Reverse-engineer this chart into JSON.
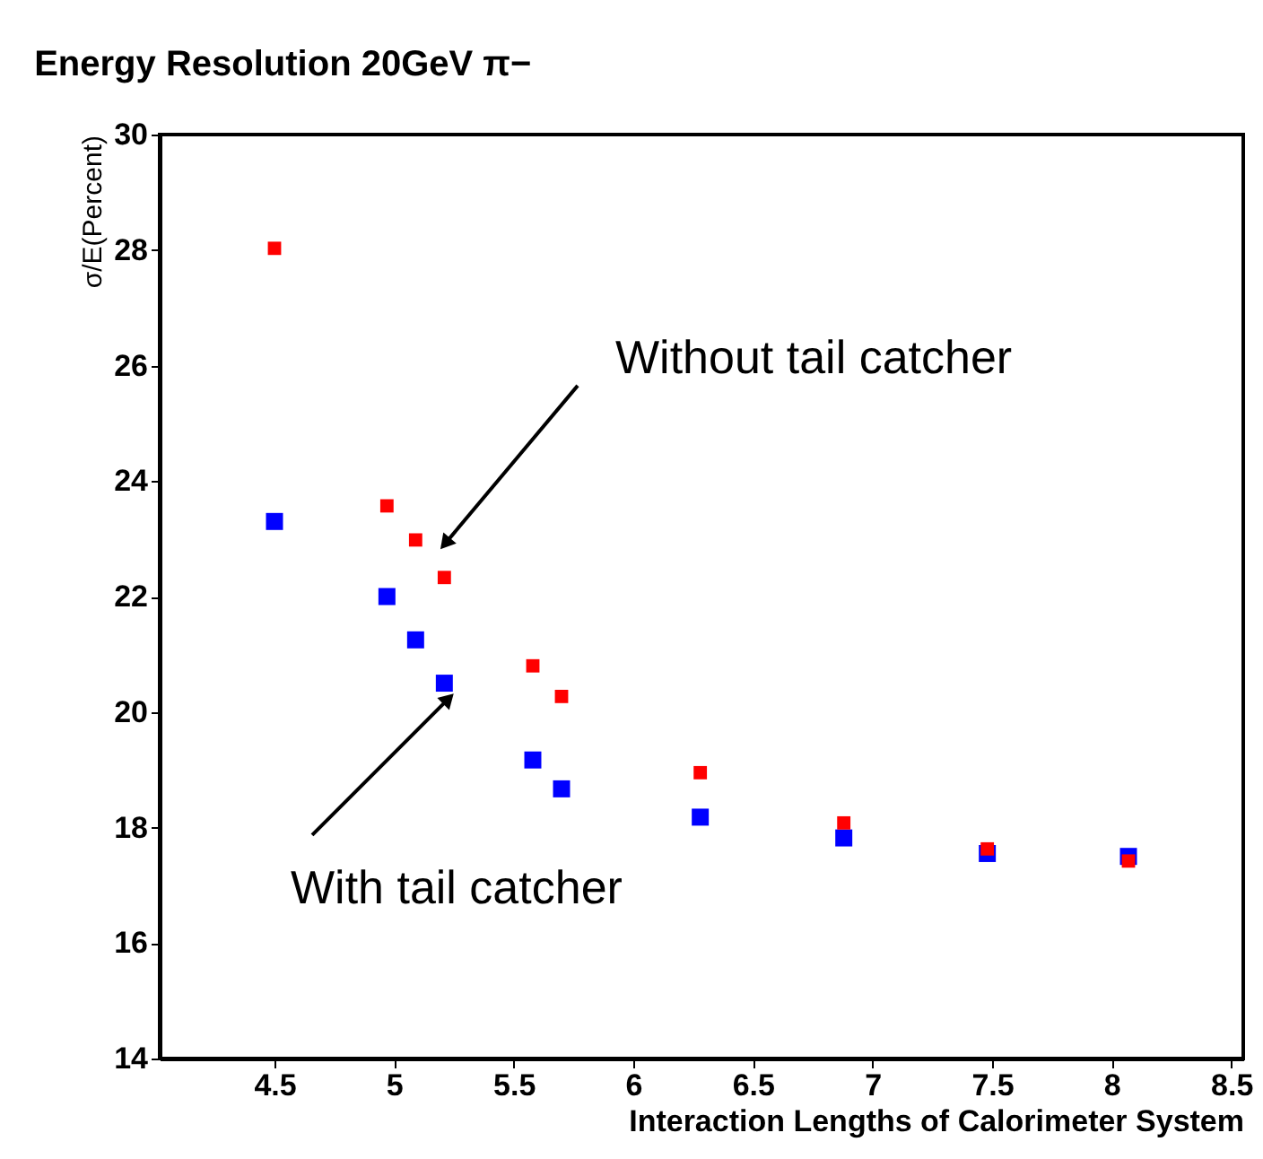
{
  "chart_data": {
    "type": "scatter",
    "title": "Energy Resolution 20GeV π−",
    "xlabel": "Interaction Lengths of Calorimeter System",
    "ylabel": "σ/E(Percent)",
    "x": [
      4.5,
      4.97,
      5.09,
      5.21,
      5.58,
      5.7,
      6.28,
      6.88,
      7.48,
      8.07
    ],
    "series": [
      {
        "color": "#0000ff",
        "values": [
          23.3,
          22.0,
          21.25,
          20.5,
          19.17,
          18.67,
          18.18,
          17.82,
          17.55,
          17.5
        ]
      },
      {
        "color": "#ff0000",
        "values": [
          28.03,
          23.57,
          22.98,
          22.33,
          20.8,
          20.27,
          18.95,
          18.08,
          17.63,
          17.42
        ]
      }
    ],
    "marker": "square",
    "grid": false,
    "xlim": [
      4.02,
      8.55
    ],
    "xticks": [
      4.5,
      5,
      5.5,
      6,
      6.5,
      7,
      7.5,
      8,
      8.5
    ],
    "ylim": [
      14,
      30
    ],
    "yticks": [
      14,
      16,
      18,
      20,
      22,
      24,
      26,
      28,
      30
    ],
    "annotations": [
      {
        "text": "Without tail catcher",
        "x": 5.22,
        "y": 22.95
      },
      {
        "text": "With tail catcher",
        "x": 5.22,
        "y": 20.2
      }
    ]
  }
}
